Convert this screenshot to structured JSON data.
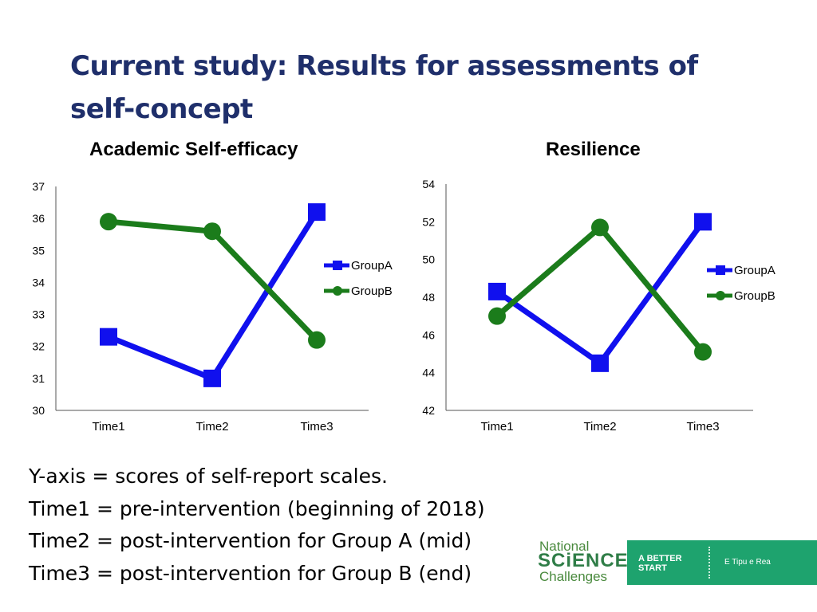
{
  "slide": {
    "title": "Current study: Results for assessments of self-concept",
    "notes": [
      "Y-axis = scores of self-report scales.",
      "Time1 = pre-intervention (beginning of 2018)",
      "Time2 = post-intervention for Group A (mid)",
      "Time3 = post-intervention for Group B (end)"
    ],
    "logo": {
      "line1": "National",
      "line2": "SCiENCE",
      "line3": "Challenges",
      "tagline": "A BETTER START",
      "maori": "E Tipu e Rea"
    }
  },
  "colors": {
    "groupA": "#1010ee",
    "groupB": "#1b7c1b",
    "title": "#1f2f6b",
    "logo_band": "#1ea36e"
  },
  "chart_data": [
    {
      "type": "line",
      "title": "Academic Self-efficacy",
      "categories": [
        "Time1",
        "Time2",
        "Time3"
      ],
      "series": [
        {
          "name": "GroupA",
          "values": [
            32.3,
            31.0,
            36.2
          ],
          "marker": "square"
        },
        {
          "name": "GroupB",
          "values": [
            35.9,
            35.6,
            32.2
          ],
          "marker": "circle"
        }
      ],
      "ylim": [
        30,
        37
      ],
      "yticks": [
        30,
        31,
        32,
        33,
        34,
        35,
        36,
        37
      ],
      "legend": "right",
      "grid": false
    },
    {
      "type": "line",
      "title": "Resilience",
      "categories": [
        "Time1",
        "Time2",
        "Time3"
      ],
      "series": [
        {
          "name": "GroupA",
          "values": [
            48.3,
            44.5,
            52.0
          ],
          "marker": "square"
        },
        {
          "name": "GroupB",
          "values": [
            47.0,
            51.7,
            45.1
          ],
          "marker": "circle"
        }
      ],
      "ylim": [
        42,
        54
      ],
      "yticks": [
        42,
        44,
        46,
        48,
        50,
        52,
        54
      ],
      "legend": "right",
      "grid": false
    }
  ]
}
